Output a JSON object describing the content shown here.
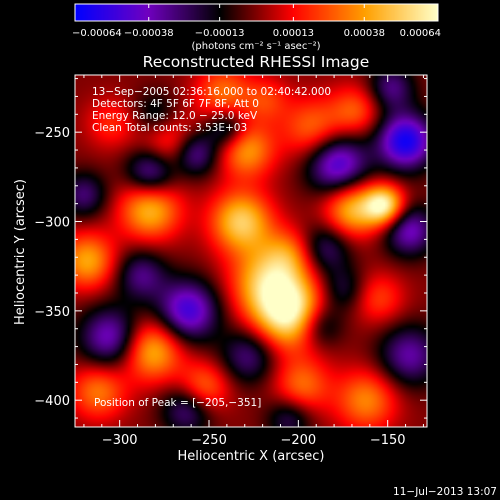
{
  "chart_data": {
    "type": "heatmap",
    "title": "Reconstructed RHESSI Image",
    "xlabel": "Heliocentric X (arcsec)",
    "ylabel": "Heliocentric Y (arcsec)",
    "xlim": [
      -325,
      -128
    ],
    "ylim": [
      -415,
      -218
    ],
    "x_ticks": [
      -300,
      -250,
      -200,
      -150
    ],
    "y_ticks": [
      -250,
      -300,
      -350,
      -400
    ],
    "x_tick_labels": [
      "−300",
      "−250",
      "−200",
      "−150"
    ],
    "y_tick_labels": [
      "−250",
      "−300",
      "−350",
      "−400"
    ],
    "colorbar": {
      "min": -0.00064,
      "max": 0.00064,
      "ticks": [
        -0.00064,
        -0.00038,
        -0.00013,
        0.00013,
        0.00038,
        0.00064
      ],
      "tick_labels": [
        "−0.00064",
        "−0.00038",
        "−0.00013",
        "0.00013",
        "0.00038",
        "0.00064"
      ],
      "units": "(photons cm⁻² s⁻¹ asec⁻²)",
      "colors": [
        "#0000ff",
        "#7000c0",
        "#000000",
        "#ff0000",
        "#ffa000",
        "#ffffc8"
      ]
    },
    "info_lines": [
      "13−Sep−2005 02:36:16.000 to 02:40:42.000",
      "Detectors: 4F 5F 6F 7F 8F, Att 0",
      "Energy Range: 12.0 − 25.0 keV",
      "Clean     Total counts: 3.53E+03"
    ],
    "peak_label": "Position of Peak = [−205,−351]",
    "peak": [
      -205,
      -351
    ],
    "sources": [
      {
        "x": -205,
        "y": -351,
        "v": 0.00064,
        "s": 14
      },
      {
        "x": -218,
        "y": -333,
        "v": 0.00042,
        "s": 14
      },
      {
        "x": -232,
        "y": -300,
        "v": 0.0005,
        "s": 12
      },
      {
        "x": -229,
        "y": -260,
        "v": 0.00038,
        "s": 11
      },
      {
        "x": -242,
        "y": -228,
        "v": 0.0003,
        "s": 11
      },
      {
        "x": -283,
        "y": -293,
        "v": 0.00045,
        "s": 12
      },
      {
        "x": -272,
        "y": -258,
        "v": 0.0003,
        "s": 12
      },
      {
        "x": -318,
        "y": -322,
        "v": 0.0004,
        "s": 11
      },
      {
        "x": -312,
        "y": -395,
        "v": 0.00032,
        "s": 11
      },
      {
        "x": -282,
        "y": -372,
        "v": 0.00045,
        "s": 12
      },
      {
        "x": -253,
        "y": -393,
        "v": 0.00032,
        "s": 10
      },
      {
        "x": -170,
        "y": -293,
        "v": 0.00045,
        "s": 11
      },
      {
        "x": -152,
        "y": -291,
        "v": 0.0006,
        "s": 8
      },
      {
        "x": -162,
        "y": -400,
        "v": 0.00034,
        "s": 12
      },
      {
        "x": -198,
        "y": -392,
        "v": 0.0003,
        "s": 11
      },
      {
        "x": -155,
        "y": -343,
        "v": 0.00022,
        "s": 10
      },
      {
        "x": -218,
        "y": -232,
        "v": 0.0002,
        "s": 9
      },
      {
        "x": -192,
        "y": -248,
        "v": 0.0003,
        "s": 12
      },
      {
        "x": -168,
        "y": -238,
        "v": 0.00026,
        "s": 10
      },
      {
        "x": -205,
        "y": -318,
        "v": 0.00025,
        "s": 10
      },
      {
        "x": -305,
        "y": -245,
        "v": 0.00018,
        "s": 10
      },
      {
        "x": -288,
        "y": -330,
        "v": -0.0003,
        "s": 10
      },
      {
        "x": -282,
        "y": -272,
        "v": -0.00045,
        "s": 10
      },
      {
        "x": -258,
        "y": -262,
        "v": -0.0004,
        "s": 9
      },
      {
        "x": -305,
        "y": -365,
        "v": -0.00042,
        "s": 12
      },
      {
        "x": -262,
        "y": -350,
        "v": -0.0005,
        "s": 12
      },
      {
        "x": -262,
        "y": -405,
        "v": -0.00032,
        "s": 10
      },
      {
        "x": -188,
        "y": -358,
        "v": -0.0003,
        "s": 9
      },
      {
        "x": -178,
        "y": -268,
        "v": -0.0005,
        "s": 12
      },
      {
        "x": -185,
        "y": -315,
        "v": -0.00028,
        "s": 10
      },
      {
        "x": -140,
        "y": -255,
        "v": -0.0006,
        "s": 11
      },
      {
        "x": -138,
        "y": -305,
        "v": -0.0004,
        "s": 10
      },
      {
        "x": -138,
        "y": -375,
        "v": -0.00035,
        "s": 12
      },
      {
        "x": -175,
        "y": -338,
        "v": -0.00022,
        "s": 9
      },
      {
        "x": -240,
        "y": -248,
        "v": -0.0003,
        "s": 8
      },
      {
        "x": -320,
        "y": -285,
        "v": -0.00028,
        "s": 9
      },
      {
        "x": -280,
        "y": -240,
        "v": -0.0002,
        "s": 9
      },
      {
        "x": -228,
        "y": -375,
        "v": -0.0003,
        "s": 11
      },
      {
        "x": -205,
        "y": -410,
        "v": -0.00025,
        "s": 9
      },
      {
        "x": -148,
        "y": -225,
        "v": -0.0003,
        "s": 9
      }
    ]
  },
  "footer": {
    "timestamp": "11−Jul−2013 13:07"
  }
}
